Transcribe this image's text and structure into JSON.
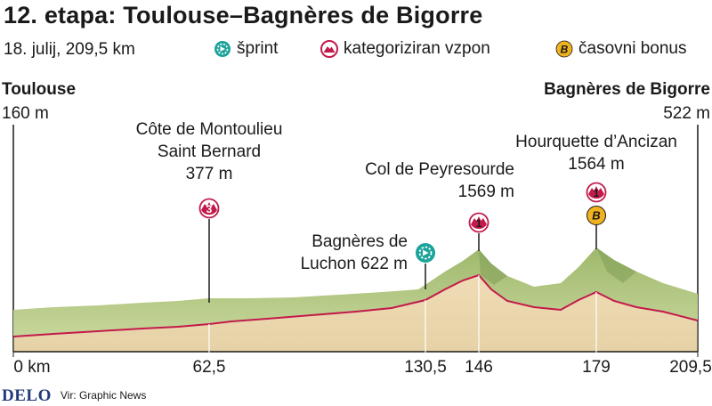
{
  "title": "12. etapa: Toulouse–Bagnères de Bigorre",
  "subtitle": "18. julij, 209,5 km",
  "legend": [
    {
      "icon": "sprint-icon",
      "label": "šprint",
      "color": "#1aa39a"
    },
    {
      "icon": "climb-icon",
      "label": "kategoriziran vzpon",
      "color": "#c21b4b"
    },
    {
      "icon": "time-bonus-icon",
      "label": "časovni bonus",
      "color": "#f0b21e",
      "letter": "B"
    }
  ],
  "start": {
    "name": "Toulouse",
    "altitude": "160 m"
  },
  "finish": {
    "name": "Bagnères de Bigorre",
    "altitude": "522 m"
  },
  "climbs": [
    {
      "line1": "Côte de Montoulieu",
      "line2": "Saint Bernard",
      "altitude": "377 m",
      "category": "3"
    },
    {
      "line1": "Col de Peyresourde",
      "altitude": "1569 m",
      "category": "1"
    },
    {
      "line1": "Hourquette d’Ancizan",
      "altitude": "1564 m",
      "category": "1",
      "bonus": "B"
    }
  ],
  "sprint": {
    "line1": "Bagnères de",
    "line2": "Luchon 622 m"
  },
  "km_markers": [
    "0 km",
    "62,5",
    "130,5",
    "146",
    "179",
    "209,5"
  ],
  "footer": {
    "brand": "DELO",
    "source": "Vir: Graphic News"
  },
  "colors": {
    "sprint": "#1aa39a",
    "climb": "#c21b4b",
    "bonus": "#f0b21e",
    "terrain_top": "#a9c47a",
    "terrain_bottom": "#e9d8b3",
    "profile_line": "#c21b4b"
  }
}
